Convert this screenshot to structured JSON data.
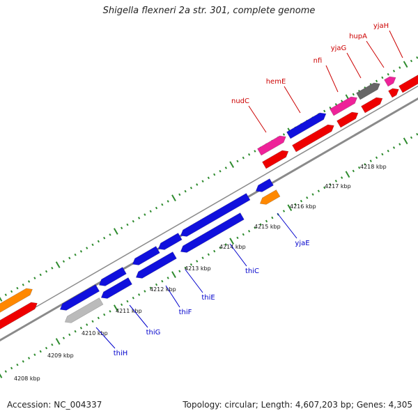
{
  "title": "Shigella flexneri 2a str. 301, complete genome",
  "footer": {
    "accession": "Accession: NC_004337",
    "topology": "Topology: circular; Length: 4,607,203 bp; Genes: 4,305"
  },
  "colors": {
    "axis": "#8a8a8a",
    "tick": "#2e8b2e",
    "forward_label": "#cc0000",
    "reverse_label": "#0000cc",
    "red": "#ee0000",
    "blue": "#1010dd",
    "pink": "#ee2299",
    "orange": "#ff8800",
    "gray": "#666666",
    "lightgray": "#bbbbbb"
  },
  "kbp_labels": [
    "4208 kbp",
    "4209 kbp",
    "4210 kbp",
    "4211 kbp",
    "4212 kbp",
    "4213 kbp",
    "4214 kbp",
    "4215 kbp",
    "4216 kbp",
    "4217 kbp",
    "4218 kbp"
  ],
  "forward_gene_labels": [
    "nudC",
    "hemE",
    "nfi",
    "yjaG",
    "hupA",
    "yjaH"
  ],
  "reverse_gene_labels": [
    "thiH",
    "thiG",
    "thiF",
    "thiE",
    "thiC",
    "yjaE"
  ]
}
